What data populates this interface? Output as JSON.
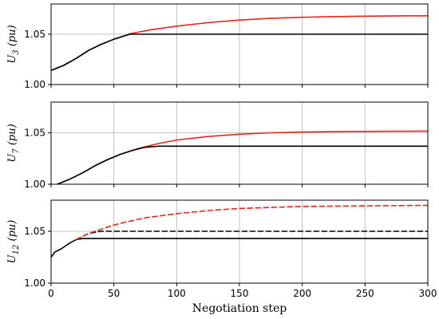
{
  "chart_data": {
    "type": "line",
    "xlabel": "Negotiation step",
    "xlim": [
      0,
      300
    ],
    "xticks": [
      0,
      50,
      100,
      150,
      200,
      250,
      300
    ],
    "grid": true,
    "colors": {
      "red": "#e8231c",
      "black": "#000000"
    },
    "subplots": [
      {
        "ylabel_main": "U",
        "ylabel_sub": "3",
        "ylabel_unit": "(pu)",
        "ylim": [
          1.0,
          1.08
        ],
        "yticks": [
          1.0,
          1.05
        ],
        "series": [
          {
            "color": "#e8231c",
            "style": "solid",
            "x": [
              0,
              10,
              20,
              30,
              40,
              50,
              60,
              63,
              80,
              100,
              125,
              150,
              175,
              200,
              225,
              250,
              275,
              300
            ],
            "y": [
              1.014,
              1.019,
              1.026,
              1.034,
              1.04,
              1.045,
              1.049,
              1.0505,
              1.0545,
              1.058,
              1.0615,
              1.064,
              1.0658,
              1.0668,
              1.0675,
              1.0679,
              1.0682,
              1.0683
            ]
          },
          {
            "color": "#000000",
            "style": "solid",
            "x": [
              0,
              10,
              20,
              30,
              40,
              50,
              60,
              63,
              100,
              150,
              200,
              250,
              300
            ],
            "y": [
              1.014,
              1.019,
              1.026,
              1.034,
              1.04,
              1.045,
              1.049,
              1.05,
              1.05,
              1.05,
              1.05,
              1.05,
              1.05
            ]
          }
        ]
      },
      {
        "ylabel_main": "U",
        "ylabel_sub": "7",
        "ylabel_unit": "(pu)",
        "ylim": [
          1.0,
          1.08
        ],
        "yticks": [
          1.0,
          1.05
        ],
        "series": [
          {
            "color": "#e8231c",
            "style": "solid",
            "x": [
              5,
              15,
              25,
              35,
              45,
              55,
              65,
              70,
              85,
              100,
              125,
              150,
              175,
              200,
              225,
              250,
              275,
              300
            ],
            "y": [
              1.0,
              1.005,
              1.011,
              1.018,
              1.024,
              1.029,
              1.033,
              1.035,
              1.0395,
              1.043,
              1.0465,
              1.0487,
              1.0501,
              1.0508,
              1.0512,
              1.0514,
              1.0516,
              1.0517
            ]
          },
          {
            "color": "#000000",
            "style": "solid",
            "x": [
              5,
              15,
              25,
              35,
              45,
              55,
              65,
              75,
              85,
              100,
              150,
              200,
              250,
              300
            ],
            "y": [
              1.0,
              1.005,
              1.011,
              1.018,
              1.024,
              1.029,
              1.033,
              1.036,
              1.037,
              1.037,
              1.037,
              1.037,
              1.037,
              1.037
            ]
          }
        ]
      },
      {
        "ylabel_main": "U",
        "ylabel_sub": "12",
        "ylabel_unit": "(pu)",
        "ylim": [
          1.0,
          1.08
        ],
        "yticks": [
          1.0,
          1.05
        ],
        "series": [
          {
            "color": "#000000",
            "style": "solid",
            "x": [
              0,
              3,
              8,
              14,
              20,
              25,
              50,
              100,
              150,
              200,
              250,
              300
            ],
            "y": [
              1.025,
              1.03,
              1.033,
              1.038,
              1.042,
              1.043,
              1.043,
              1.043,
              1.043,
              1.043,
              1.043,
              1.043
            ]
          },
          {
            "color": "#000000",
            "style": "dashed",
            "x": [
              20,
              30,
              40,
              50,
              75,
              100,
              150,
              200,
              250,
              300
            ],
            "y": [
              1.042,
              1.048,
              1.05,
              1.05,
              1.05,
              1.05,
              1.05,
              1.05,
              1.05,
              1.05
            ]
          },
          {
            "color": "#e8231c",
            "style": "dashed",
            "x": [
              20,
              30,
              40,
              50,
              60,
              75,
              100,
              125,
              150,
              175,
              200,
              250,
              300
            ],
            "y": [
              1.042,
              1.048,
              1.052,
              1.056,
              1.059,
              1.063,
              1.067,
              1.07,
              1.072,
              1.073,
              1.074,
              1.0745,
              1.075
            ]
          }
        ]
      }
    ]
  }
}
